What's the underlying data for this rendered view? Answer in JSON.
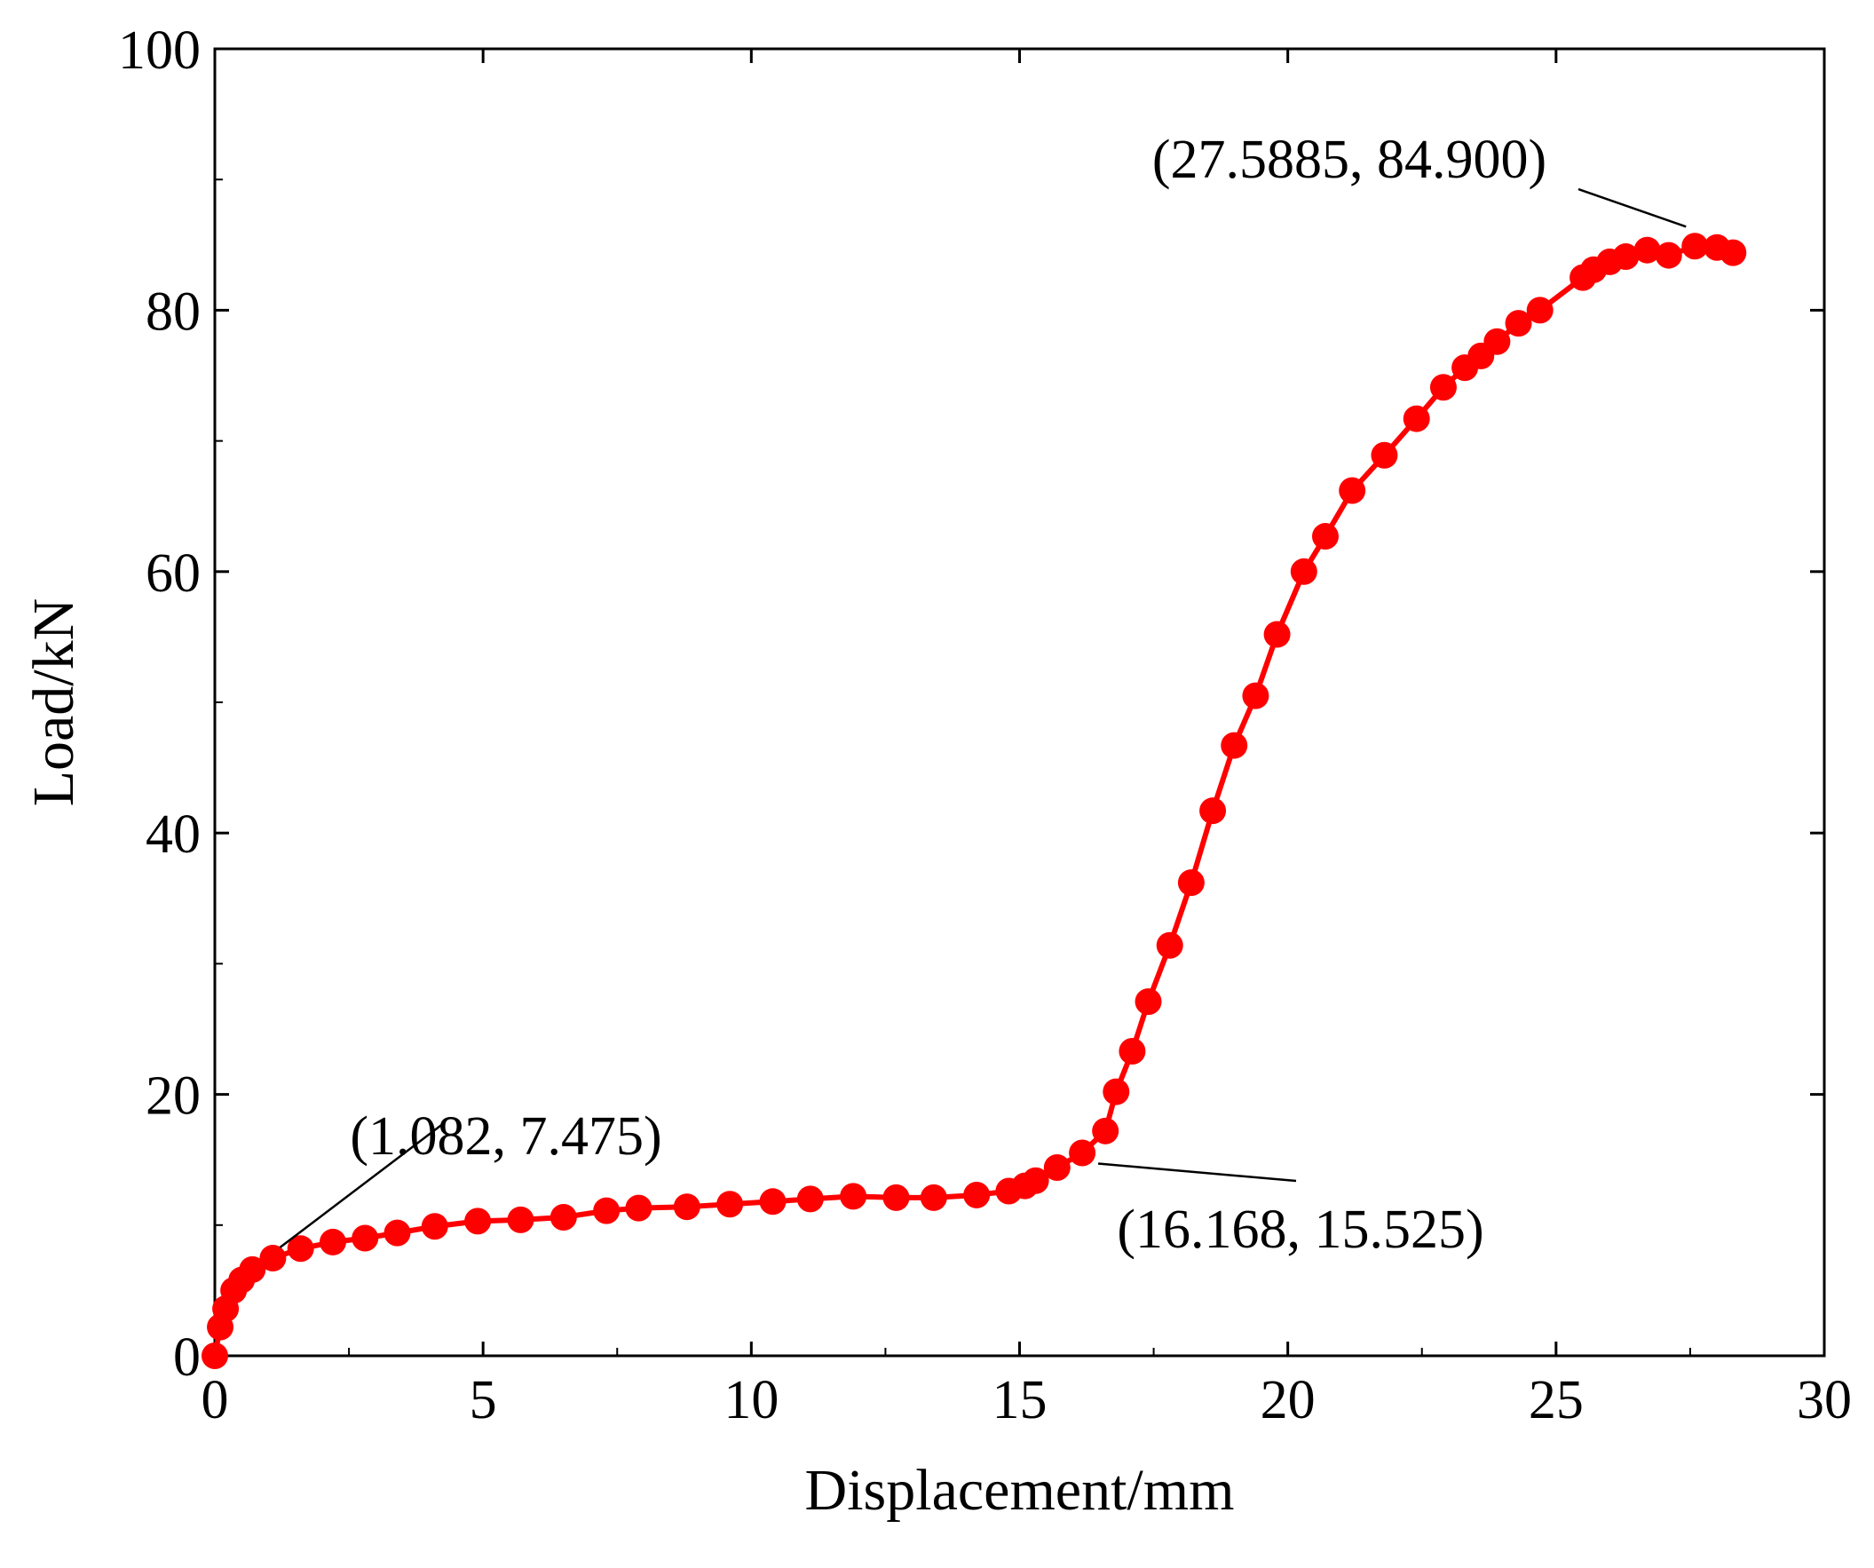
{
  "chart_data": {
    "type": "line",
    "xlabel": "Displacement/mm",
    "ylabel": "Load/kN",
    "xlim": [
      0,
      30
    ],
    "ylim": [
      0,
      100
    ],
    "xticks": [
      "0",
      "5",
      "10",
      "15",
      "20",
      "25",
      "30"
    ],
    "yticks": [
      "0",
      "20",
      "40",
      "60",
      "80",
      "100"
    ],
    "grid": false,
    "line_color": "#ff0000",
    "marker_color": "#ff0000",
    "series": [
      {
        "x": [
          0,
          0.1,
          0.2,
          0.35,
          0.5,
          0.7,
          1.082,
          1.6,
          2.2,
          2.8,
          3.4,
          4.1,
          4.9,
          5.7,
          6.5,
          7.3,
          7.9,
          8.8,
          9.6,
          10.4,
          11.1,
          11.9,
          12.7,
          13.4,
          14.2,
          14.8,
          15.1,
          15.3,
          15.7,
          16.168,
          16.6,
          16.8,
          17.1,
          17.4,
          17.8,
          18.2,
          18.6,
          19.0,
          19.4,
          19.8,
          20.3,
          20.7,
          21.2,
          21.8,
          22.4,
          22.9,
          23.3,
          23.6,
          23.9,
          24.3,
          24.7,
          25.5,
          25.7,
          26.0,
          26.3,
          26.7,
          27.1,
          27.5885,
          28.0,
          28.3
        ],
        "y": [
          0,
          2.2,
          3.6,
          5.0,
          5.8,
          6.6,
          7.475,
          8.2,
          8.7,
          9.0,
          9.4,
          9.9,
          10.3,
          10.4,
          10.6,
          11.1,
          11.3,
          11.4,
          11.6,
          11.8,
          12.0,
          12.2,
          12.1,
          12.1,
          12.3,
          12.6,
          13.0,
          13.4,
          14.4,
          15.525,
          17.2,
          20.2,
          23.3,
          27.1,
          31.4,
          36.2,
          41.7,
          46.7,
          50.5,
          55.2,
          60.0,
          62.7,
          66.2,
          68.9,
          71.7,
          74.1,
          75.6,
          76.5,
          77.6,
          79.0,
          80.0,
          82.5,
          83.1,
          83.7,
          84.1,
          84.6,
          84.2,
          84.9,
          84.8,
          84.4
        ]
      }
    ],
    "annotations": [
      {
        "text": "(1.082, 7.475)",
        "x": 1.082,
        "y": 7.475
      },
      {
        "text": "(16.168, 15.525)",
        "x": 16.168,
        "y": 15.525
      },
      {
        "text": "(27.5885, 84.900)",
        "x": 27.5885,
        "y": 84.9
      }
    ]
  }
}
